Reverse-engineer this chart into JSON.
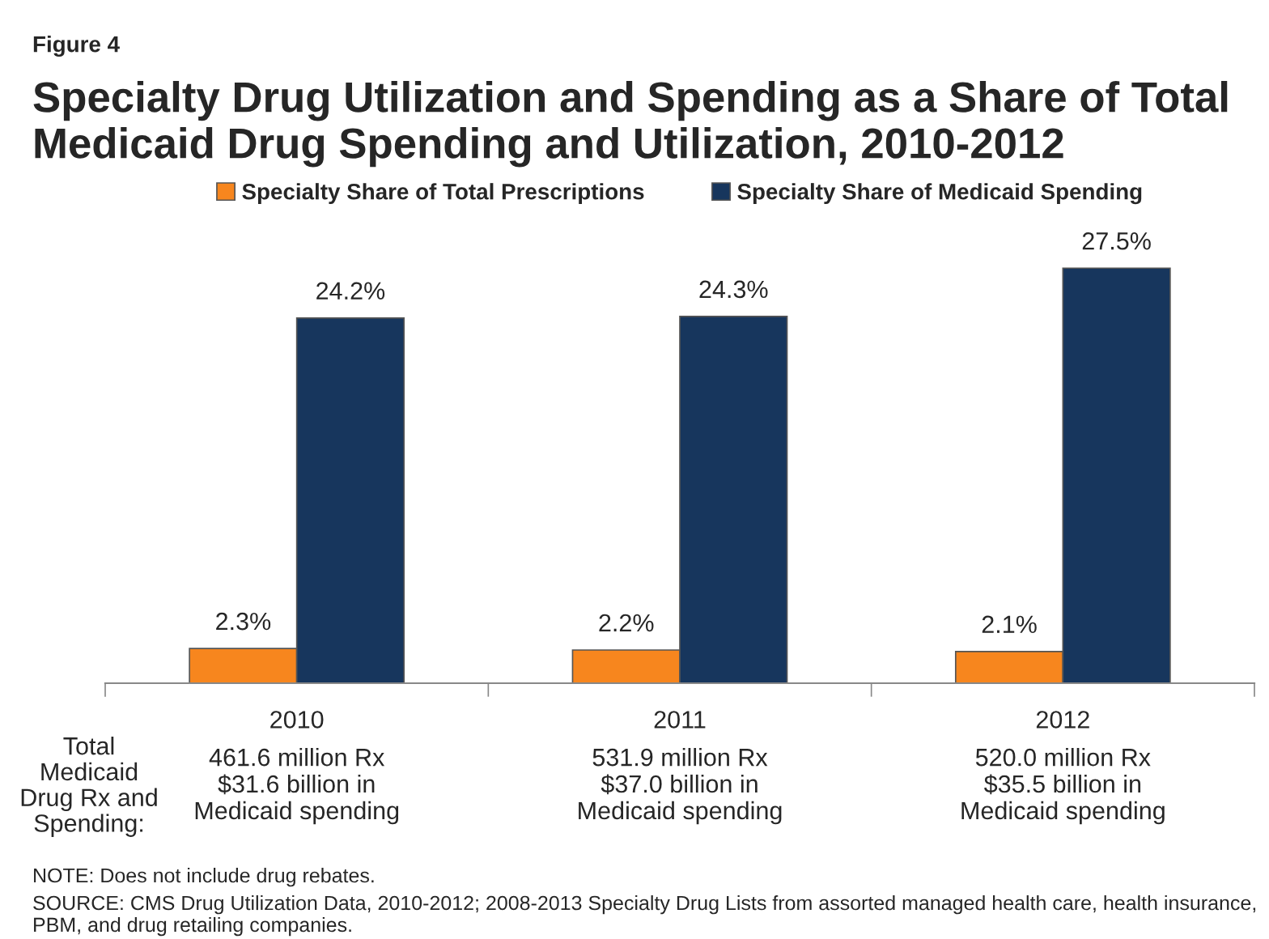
{
  "chart_data": {
    "type": "bar",
    "title": "Specialty Drug Utilization and Spending as a Share of Total Medicaid Drug Spending and Utilization, 2010-2012",
    "categories": [
      "2010",
      "2011",
      "2012"
    ],
    "series": [
      {
        "name": "Specialty Share of Total Prescriptions",
        "color": "#f7861e",
        "values": [
          2.3,
          2.2,
          2.1
        ],
        "value_labels": [
          "2.3%",
          "2.2%",
          "2.1%"
        ]
      },
      {
        "name": "Specialty Share of Medicaid Spending",
        "color": "#17365d",
        "values": [
          24.2,
          24.3,
          27.5
        ],
        "value_labels": [
          "24.2%",
          "24.3%",
          "27.5%"
        ]
      }
    ],
    "tick_labels": "x",
    "legend": "top",
    "grid": false,
    "annotations": [
      "Figure 4",
      "Total\nMedicaid\nDrug Rx and\nSpending:",
      "461.6 million Rx\n$31.6 billion in\nMedicaid spending",
      "531.9 million Rx\n$37.0 billion in\nMedicaid spending",
      "520.0 million Rx\n$35.5 billion in\nMedicaid spending",
      "NOTE: Does not include drug rebates.",
      "SOURCE: CMS Drug Utilization Data, 2010-2012; 2008-2013 Specialty Drug Lists from assorted managed health care, health insurance, PBM, and drug retailing companies."
    ]
  }
}
